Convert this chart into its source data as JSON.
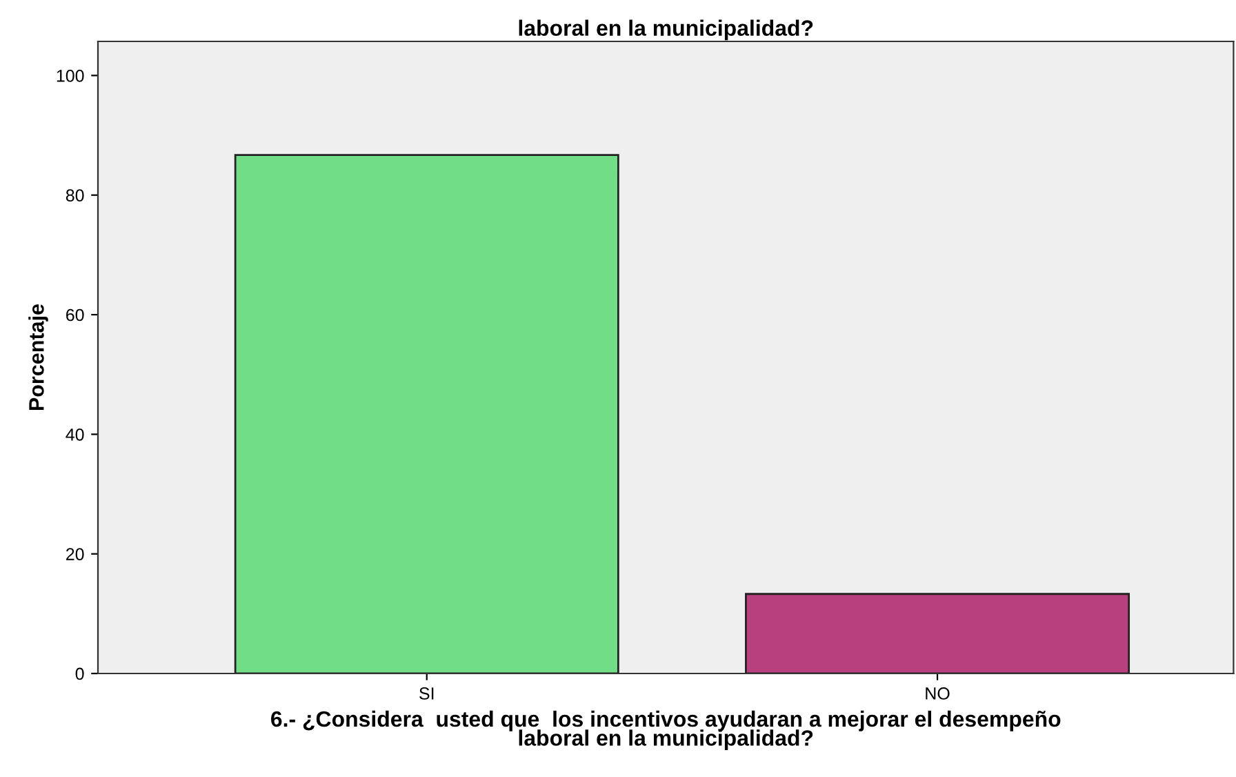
{
  "chart_data": {
    "type": "bar",
    "title": "laboral en la municipalidad?",
    "xlabel": "6.- ¿Considera  usted que  los incentivos ayudaran a mejorar el desempeño\nlaboral en la municipalidad?",
    "ylabel": "Porcentaje",
    "categories": [
      "SI",
      "NO"
    ],
    "values": [
      86.7,
      13.3
    ],
    "colors": [
      "#72dd87",
      "#b9407e"
    ],
    "ylim": [
      0,
      105.7
    ],
    "yticks": [
      0,
      20,
      40,
      60,
      80,
      100
    ],
    "grid": false,
    "legend": false
  }
}
